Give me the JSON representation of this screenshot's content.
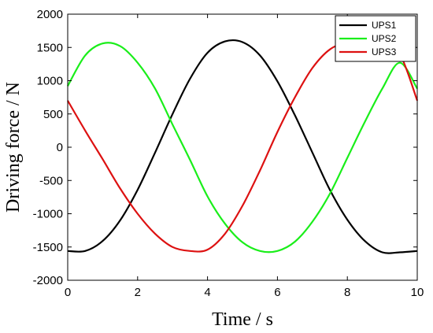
{
  "chart_data": {
    "type": "line",
    "title": "",
    "xlabel": "Time / s",
    "ylabel": "Driving force / N",
    "xlim": [
      0,
      10
    ],
    "ylim": [
      -2000,
      2000
    ],
    "xticks": [
      0,
      2,
      4,
      6,
      8,
      10
    ],
    "yticks": [
      -2000,
      -1500,
      -1000,
      -500,
      0,
      500,
      1000,
      1500,
      2000
    ],
    "grid": false,
    "legend_position": "top-right",
    "x": [
      0,
      0.5,
      1,
      1.5,
      2,
      2.5,
      3,
      3.5,
      4,
      4.5,
      5,
      5.5,
      6,
      6.5,
      7,
      7.5,
      8,
      8.5,
      9,
      9.5,
      10
    ],
    "series": [
      {
        "name": "UPS1",
        "color": "#000000",
        "values": [
          -1560,
          -1560,
          -1410,
          -1100,
          -640,
          -80,
          500,
          1030,
          1420,
          1590,
          1580,
          1380,
          990,
          480,
          -80,
          -640,
          -1090,
          -1410,
          -1580,
          -1580,
          -1560
        ]
      },
      {
        "name": "UPS2",
        "color": "#1aee1a",
        "values": [
          920,
          1380,
          1560,
          1520,
          1270,
          880,
          340,
          -190,
          -740,
          -1150,
          -1430,
          -1560,
          -1560,
          -1420,
          -1120,
          -700,
          -160,
          380,
          880,
          1270,
          880
        ]
      },
      {
        "name": "UPS3",
        "color": "#dd1111",
        "values": [
          700,
          250,
          -180,
          -620,
          -1000,
          -1300,
          -1500,
          -1560,
          -1540,
          -1300,
          -880,
          -350,
          230,
          750,
          1190,
          1470,
          1570,
          1560,
          1520,
          1400,
          700
        ]
      }
    ]
  }
}
